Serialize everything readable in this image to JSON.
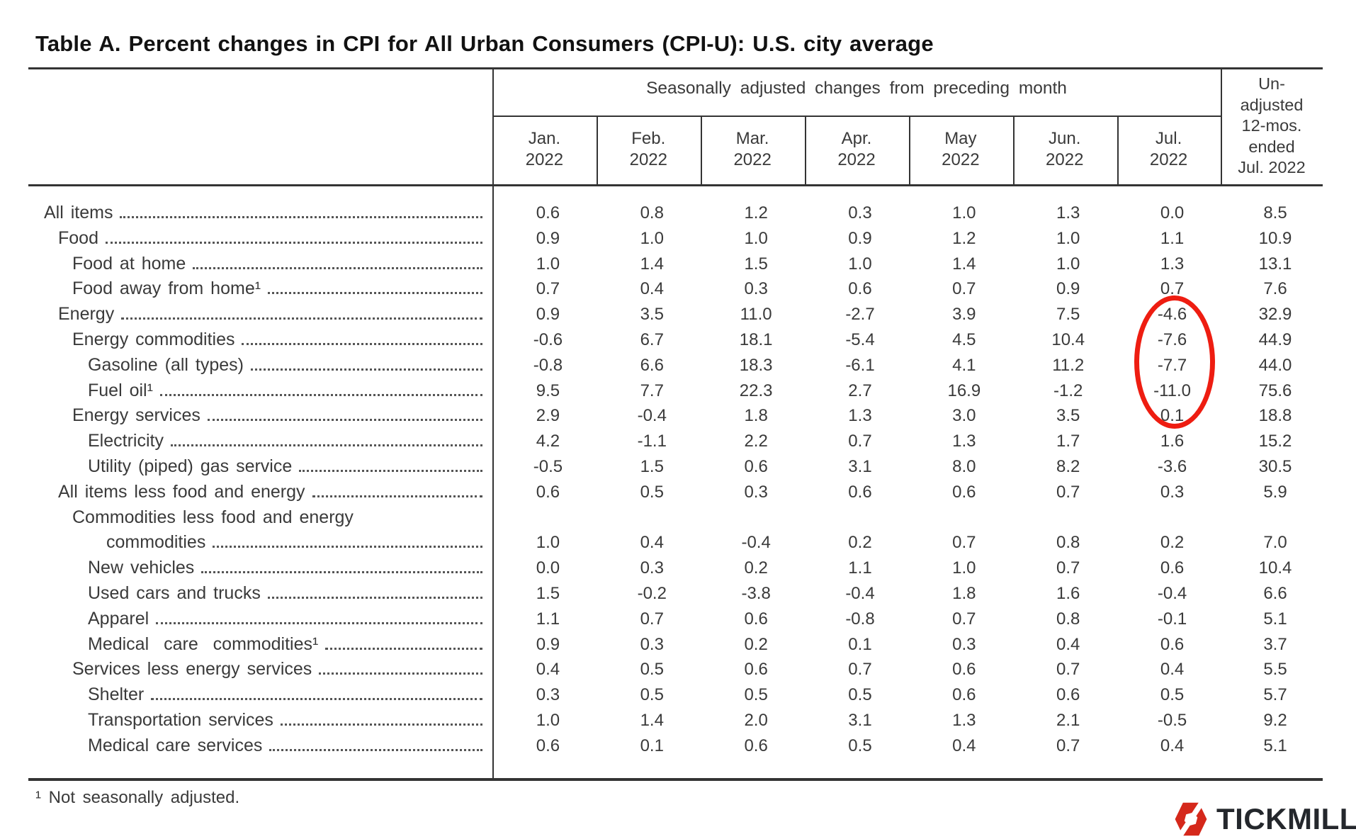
{
  "title": "Table A. Percent changes in CPI for All Urban Consumers (CPI-U): U.S. city average",
  "table": {
    "spanner": "Seasonally adjusted changes from preceding month",
    "unadjusted_header_lines": [
      "Un-",
      "adjusted",
      "12-mos.",
      "ended",
      "Jul. 2022"
    ],
    "month_headers": [
      [
        "Jan.",
        "2022"
      ],
      [
        "Feb.",
        "2022"
      ],
      [
        "Mar.",
        "2022"
      ],
      [
        "Apr.",
        "2022"
      ],
      [
        "May",
        "2022"
      ],
      [
        "Jun.",
        "2022"
      ],
      [
        "Jul.",
        "2022"
      ]
    ],
    "rows": [
      {
        "label": "All items",
        "indent": 0,
        "values": [
          "0.6",
          "0.8",
          "1.2",
          "0.3",
          "1.0",
          "1.3",
          "0.0",
          "8.5"
        ]
      },
      {
        "label": "Food",
        "indent": 1,
        "values": [
          "0.9",
          "1.0",
          "1.0",
          "0.9",
          "1.2",
          "1.0",
          "1.1",
          "10.9"
        ]
      },
      {
        "label": "Food at home",
        "indent": 2,
        "values": [
          "1.0",
          "1.4",
          "1.5",
          "1.0",
          "1.4",
          "1.0",
          "1.3",
          "13.1"
        ]
      },
      {
        "label": "Food away from home¹",
        "indent": 2,
        "values": [
          "0.7",
          "0.4",
          "0.3",
          "0.6",
          "0.7",
          "0.9",
          "0.7",
          "7.6"
        ]
      },
      {
        "label": "Energy",
        "indent": 1,
        "values": [
          "0.9",
          "3.5",
          "11.0",
          "-2.7",
          "3.9",
          "7.5",
          "-4.6",
          "32.9"
        ]
      },
      {
        "label": "Energy commodities",
        "indent": 2,
        "values": [
          "-0.6",
          "6.7",
          "18.1",
          "-5.4",
          "4.5",
          "10.4",
          "-7.6",
          "44.9"
        ]
      },
      {
        "label": "Gasoline (all types)",
        "indent": 3,
        "values": [
          "-0.8",
          "6.6",
          "18.3",
          "-6.1",
          "4.1",
          "11.2",
          "-7.7",
          "44.0"
        ]
      },
      {
        "label": "Fuel oil¹",
        "indent": 3,
        "values": [
          "9.5",
          "7.7",
          "22.3",
          "2.7",
          "16.9",
          "-1.2",
          "-11.0",
          "75.6"
        ]
      },
      {
        "label": "Energy services",
        "indent": 2,
        "values": [
          "2.9",
          "-0.4",
          "1.8",
          "1.3",
          "3.0",
          "3.5",
          "0.1",
          "18.8"
        ]
      },
      {
        "label": "Electricity",
        "indent": 3,
        "values": [
          "4.2",
          "-1.1",
          "2.2",
          "0.7",
          "1.3",
          "1.7",
          "1.6",
          "15.2"
        ]
      },
      {
        "label": "Utility (piped) gas service",
        "indent": 3,
        "values": [
          "-0.5",
          "1.5",
          "0.6",
          "3.1",
          "8.0",
          "8.2",
          "-3.6",
          "30.5"
        ]
      },
      {
        "label": "All items less food and energy",
        "indent": 1,
        "values": [
          "0.6",
          "0.5",
          "0.3",
          "0.6",
          "0.6",
          "0.7",
          "0.3",
          "5.9"
        ]
      },
      {
        "label": "Commodities less food and energy",
        "label2": "commodities",
        "indent": 2,
        "values": [
          "1.0",
          "0.4",
          "-0.4",
          "0.2",
          "0.7",
          "0.8",
          "0.2",
          "7.0"
        ]
      },
      {
        "label": "New vehicles",
        "indent": 3,
        "values": [
          "0.0",
          "0.3",
          "0.2",
          "1.1",
          "1.0",
          "0.7",
          "0.6",
          "10.4"
        ]
      },
      {
        "label": "Used cars and trucks",
        "indent": 3,
        "values": [
          "1.5",
          "-0.2",
          "-3.8",
          "-0.4",
          "1.8",
          "1.6",
          "-0.4",
          "6.6"
        ]
      },
      {
        "label": "Apparel",
        "indent": 3,
        "values": [
          "1.1",
          "0.7",
          "0.6",
          "-0.8",
          "0.7",
          "0.8",
          "-0.1",
          "5.1"
        ]
      },
      {
        "label": "Medical care commodities¹",
        "indent": 3,
        "wide_spacing": true,
        "values": [
          "0.9",
          "0.3",
          "0.2",
          "0.1",
          "0.3",
          "0.4",
          "0.6",
          "3.7"
        ]
      },
      {
        "label": "Services less energy services",
        "indent": 2,
        "values": [
          "0.4",
          "0.5",
          "0.6",
          "0.7",
          "0.6",
          "0.7",
          "0.4",
          "5.5"
        ]
      },
      {
        "label": "Shelter",
        "indent": 3,
        "values": [
          "0.3",
          "0.5",
          "0.5",
          "0.5",
          "0.6",
          "0.6",
          "0.5",
          "5.7"
        ]
      },
      {
        "label": "Transportation services",
        "indent": 3,
        "values": [
          "1.0",
          "1.4",
          "2.0",
          "3.1",
          "1.3",
          "2.1",
          "-0.5",
          "9.2"
        ]
      },
      {
        "label": "Medical care services",
        "indent": 3,
        "values": [
          "0.6",
          "0.1",
          "0.6",
          "0.5",
          "0.4",
          "0.7",
          "0.4",
          "5.1"
        ]
      }
    ]
  },
  "annotation": {
    "shape": "ellipse",
    "color": "#ee1d11"
  },
  "footnote": "¹ Not seasonally adjusted.",
  "logo": {
    "text": "TICKMILL",
    "icon": "tickmill-hexagon-icon",
    "icon_color": "#d5281b",
    "text_color": "#24272c"
  }
}
